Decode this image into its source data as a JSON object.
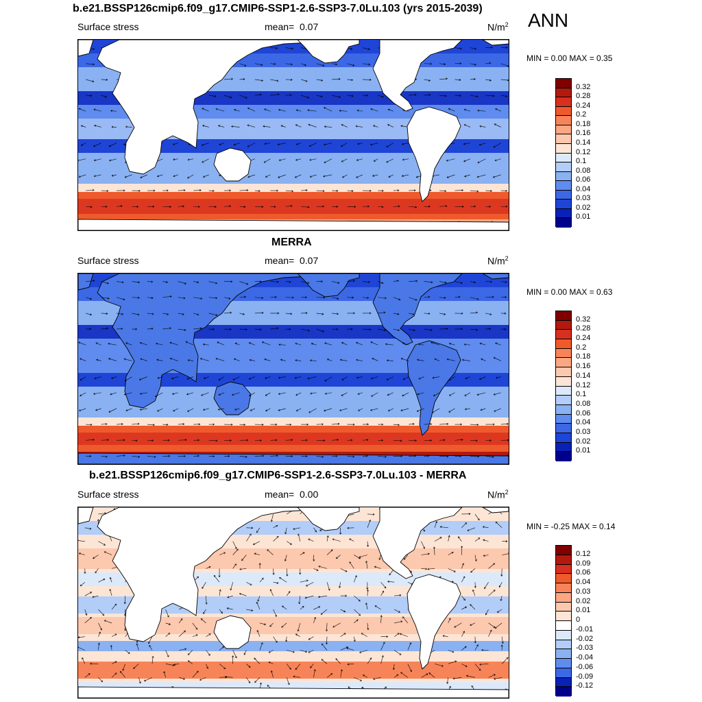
{
  "header": {
    "season": "ANN"
  },
  "panels": [
    {
      "id": "model",
      "title": "b.e21.BSSP126cmip6.f09_g17.CMIP6-SSP1-2.6-SSP3-7.0Lu.103 (yrs 2015-2039)",
      "variable": "Surface stress",
      "mean_label": "mean=",
      "mean_value": "0.07",
      "units_base": "N/m",
      "units_exp": "2",
      "minmax": "MIN =   0.00 MAX =   0.35",
      "colorbar_labels": [
        "0.32",
        "0.28",
        "0.24",
        "0.2",
        "0.18",
        "0.16",
        "0.14",
        "0.12",
        "0.1",
        "0.08",
        "0.06",
        "0.04",
        "0.03",
        "0.02",
        "0.01"
      ],
      "colorbar_colors": [
        "#800000",
        "#b2190f",
        "#d7301f",
        "#ef5a2c",
        "#f78458",
        "#fba783",
        "#fcc8ae",
        "#fde5d5",
        "#dce9fb",
        "#b2cdf7",
        "#8ab1f2",
        "#5f8cee",
        "#3c68e6",
        "#1f45d6",
        "#0a21b6",
        "#00008c"
      ],
      "field_style": "model"
    },
    {
      "id": "obs",
      "title": "MERRA",
      "variable": "Surface stress",
      "mean_label": "mean=",
      "mean_value": "0.07",
      "units_base": "N/m",
      "units_exp": "2",
      "minmax": "MIN =   0.00 MAX =   0.63",
      "colorbar_labels": [
        "0.32",
        "0.28",
        "0.24",
        "0.2",
        "0.18",
        "0.16",
        "0.14",
        "0.12",
        "0.1",
        "0.08",
        "0.06",
        "0.04",
        "0.03",
        "0.02",
        "0.01"
      ],
      "colorbar_colors": [
        "#800000",
        "#b2190f",
        "#d7301f",
        "#ef5a2c",
        "#f78458",
        "#fba783",
        "#fcc8ae",
        "#fde5d5",
        "#dce9fb",
        "#b2cdf7",
        "#8ab1f2",
        "#5f8cee",
        "#3c68e6",
        "#1f45d6",
        "#0a21b6",
        "#00008c"
      ],
      "field_style": "obs"
    },
    {
      "id": "diff",
      "title": "b.e21.BSSP126cmip6.f09_g17.CMIP6-SSP1-2.6-SSP3-7.0Lu.103 - MERRA",
      "variable": "Surface stress",
      "mean_label": "mean=",
      "mean_value": "0.00",
      "units_base": "N/m",
      "units_exp": "2",
      "minmax": "MIN =  -0.25 MAX =   0.14",
      "colorbar_labels": [
        "0.12",
        "0.09",
        "0.06",
        "0.04",
        "0.03",
        "0.02",
        "0.01",
        "0",
        "-0.01",
        "-0.02",
        "-0.03",
        "-0.04",
        "-0.06",
        "-0.09",
        "-0.12"
      ],
      "colorbar_colors": [
        "#800000",
        "#b2190f",
        "#d7301f",
        "#ef5a2c",
        "#f78458",
        "#fba783",
        "#fcc8ae",
        "#fde5d5",
        "#ffffff",
        "#dce9fb",
        "#b2cdf7",
        "#8ab1f2",
        "#5f8cee",
        "#3c68e6",
        "#0a21b6",
        "#00008c"
      ],
      "field_style": "diff"
    }
  ]
}
